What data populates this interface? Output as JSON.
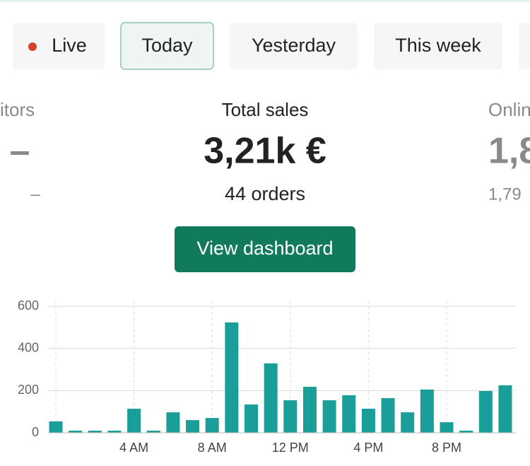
{
  "tabs": [
    "Live",
    "Today",
    "Yesterday",
    "This week"
  ],
  "selected_tab": "Today",
  "stats": [
    {
      "label": "itors",
      "value": "–",
      "sub": "–"
    },
    {
      "label": "Total sales",
      "value": "3,21k €",
      "sub": "44 orders"
    },
    {
      "label": "Onlin",
      "value": "1,8",
      "sub": "1,79"
    }
  ],
  "button": "View dashboard",
  "chart_data": {
    "type": "bar",
    "categories": [
      null,
      null,
      null,
      null,
      "4 AM",
      null,
      null,
      null,
      "8 AM",
      null,
      null,
      null,
      "12 PM",
      null,
      null,
      null,
      "4 PM",
      null,
      null,
      null,
      "8 PM",
      null,
      null,
      null
    ],
    "values": [
      54,
      10,
      10,
      10,
      114,
      10,
      97,
      60,
      70,
      523,
      134,
      329,
      154,
      218,
      154,
      178,
      114,
      164,
      97,
      205,
      50,
      10,
      198,
      225
    ],
    "color": "#1a9e9a",
    "ylim": [
      0,
      600
    ],
    "yticks": [
      0,
      200,
      400,
      600
    ],
    "grid": true
  }
}
